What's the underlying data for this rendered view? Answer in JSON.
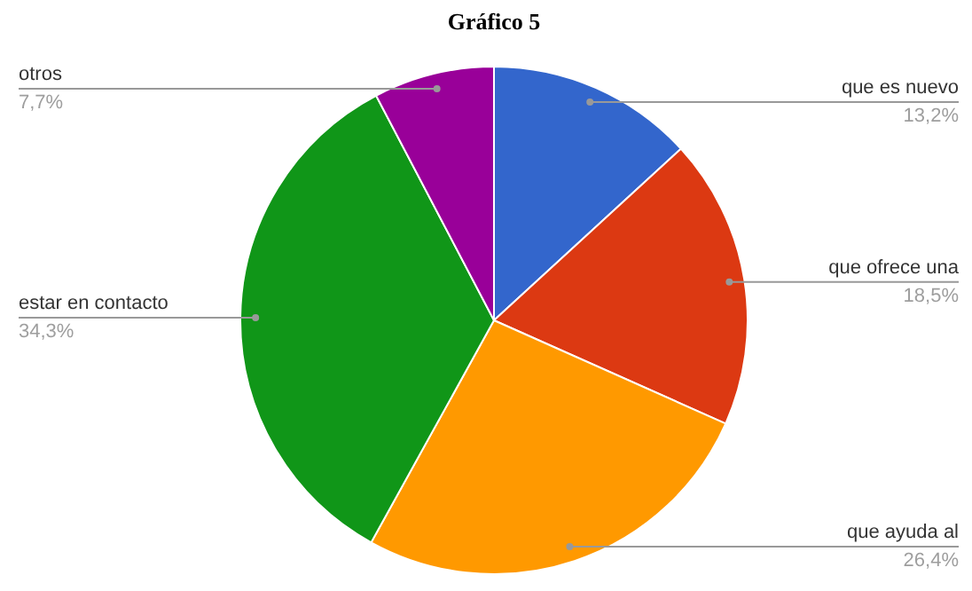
{
  "chart_data": {
    "type": "pie",
    "title": "Gráfico 5",
    "categories": [
      "que es nuevo",
      "que ofrece una",
      "que ayuda al",
      "estar en contacto",
      "otros"
    ],
    "values": [
      13.2,
      18.5,
      26.4,
      34.3,
      7.7
    ],
    "colors": [
      "#3366cc",
      "#dc3912",
      "#ff9900",
      "#109618",
      "#990099"
    ],
    "value_labels": [
      "13,2%",
      "18,5%",
      "26,4%",
      "34,3%",
      "7,7%"
    ]
  }
}
